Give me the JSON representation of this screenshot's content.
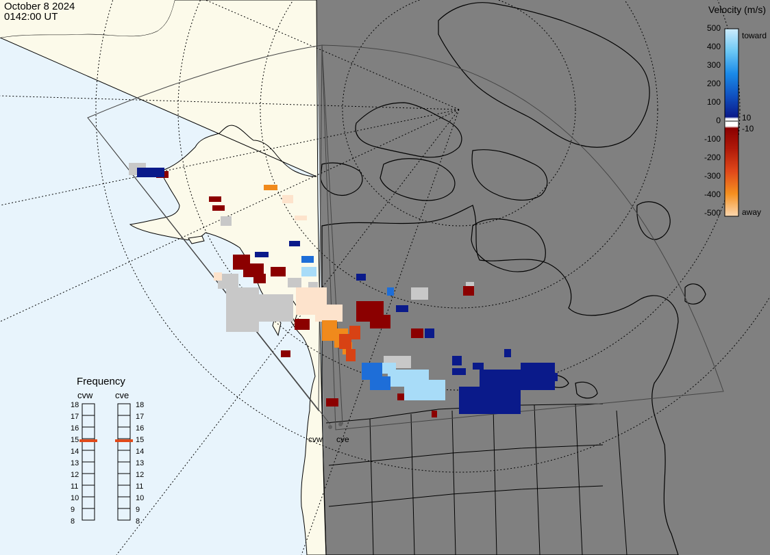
{
  "header": {
    "date": "October 8 2024",
    "time": "0142:00 UT"
  },
  "colorbar": {
    "title": "Velocity (m/s)",
    "ticks": [
      "500",
      "400",
      "300",
      "200",
      "100",
      "0",
      "-100",
      "-200",
      "-300",
      "-400",
      "-500"
    ],
    "label_top": "toward",
    "label_bottom": "away",
    "inner_pos": "10",
    "inner_neg": "-10"
  },
  "frequency": {
    "title": "Frequency",
    "radars": [
      "cvw",
      "cve"
    ],
    "scale": [
      "18",
      "17",
      "16",
      "15",
      "14",
      "13",
      "12",
      "11",
      "10",
      "9",
      "8"
    ],
    "current_mhz": [
      15,
      15
    ],
    "marker_color": "#e04a1a"
  },
  "sites": [
    "cvw",
    "cve"
  ],
  "colors": {
    "ocean_day": "#e8f4fc",
    "land_day": "#fcfaea",
    "night": "#808080",
    "ground_scatter": "#c8c8c8"
  }
}
